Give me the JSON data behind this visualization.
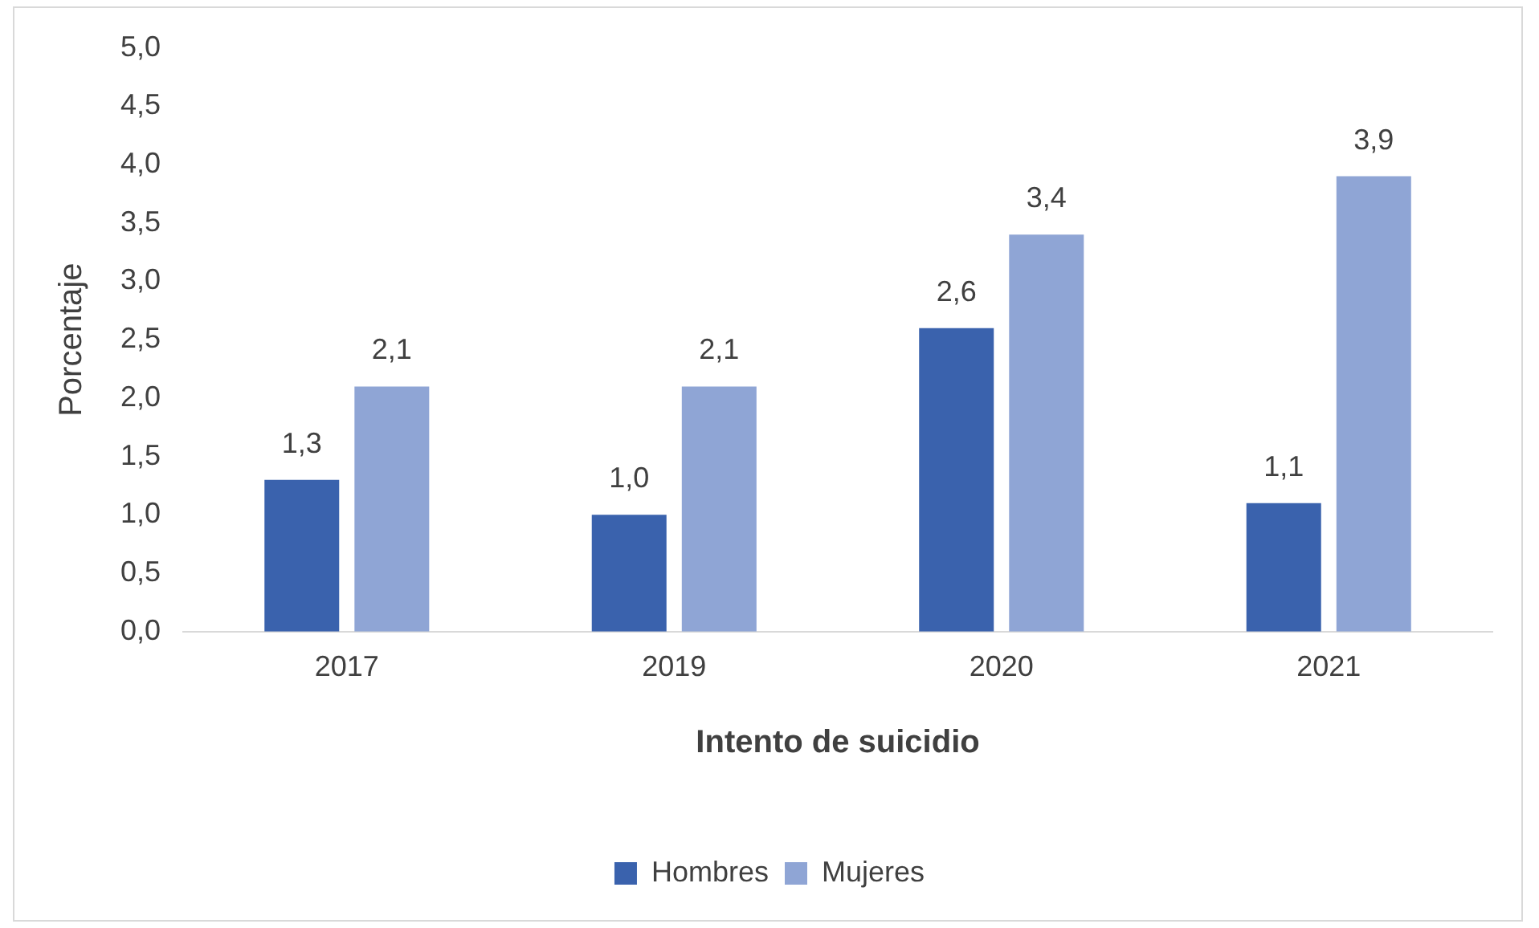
{
  "chart_data": {
    "type": "bar",
    "xlabel": "Intento de suicidio",
    "ylabel": "Porcentaje",
    "categories": [
      "2017",
      "2019",
      "2020",
      "2021"
    ],
    "series": [
      {
        "name": "Hombres",
        "color": "#3a62ad",
        "values": [
          1.3,
          1.0,
          2.6,
          1.1
        ],
        "value_labels": [
          "1,3",
          "1,0",
          "2,6",
          "1,1"
        ]
      },
      {
        "name": "Mujeres",
        "color": "#8fa5d5",
        "values": [
          2.1,
          2.1,
          3.4,
          3.9
        ],
        "value_labels": [
          "2,1",
          "2,1",
          "3,4",
          "3,9"
        ]
      }
    ],
    "ylim": [
      0,
      5
    ],
    "yticks": [
      {
        "value": 0,
        "label": "0,0"
      },
      {
        "value": 0.5,
        "label": "0,5"
      },
      {
        "value": 1,
        "label": "1,0"
      },
      {
        "value": 1.5,
        "label": "1,5"
      },
      {
        "value": 2,
        "label": "2,0"
      },
      {
        "value": 2.5,
        "label": "2,5"
      },
      {
        "value": 3,
        "label": "3,0"
      },
      {
        "value": 3.5,
        "label": "3,5"
      },
      {
        "value": 4,
        "label": "4,0"
      },
      {
        "value": 4.5,
        "label": "4,5"
      },
      {
        "value": 5,
        "label": "5,0"
      }
    ],
    "grid": false,
    "legend": "bottom"
  }
}
